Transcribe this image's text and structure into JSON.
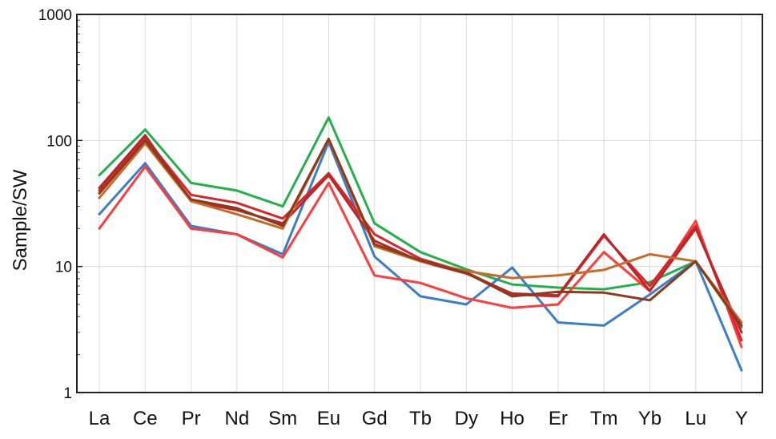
{
  "chart_data": {
    "type": "line",
    "title": "",
    "xlabel": "",
    "ylabel": "Sample/SW",
    "yscale": "log",
    "ylim": [
      1,
      1000
    ],
    "yticks": [
      "1",
      "10",
      "100",
      "1000"
    ],
    "grid": true,
    "categories": [
      "La",
      "Ce",
      "Pr",
      "Nd",
      "Sm",
      "Eu",
      "Gd",
      "Tb",
      "Dy",
      "Ho",
      "Er",
      "Tm",
      "Yb",
      "Lu",
      "Y"
    ],
    "series": [
      {
        "color": "#22b04b",
        "values": [
          53,
          122,
          46,
          40,
          30,
          152,
          22,
          13,
          9.5,
          7.2,
          6.8,
          6.6,
          7.5,
          11,
          3.3
        ]
      },
      {
        "color": "#3a7dc9",
        "values": [
          26,
          66,
          21,
          18,
          12.5,
          97,
          12,
          5.8,
          5.0,
          9.8,
          3.6,
          3.4,
          6.0,
          11,
          1.5
        ]
      },
      {
        "color": "#ff3b3b",
        "values": [
          20,
          62,
          20,
          18,
          11.8,
          46,
          8.5,
          7.4,
          5.6,
          4.7,
          5.0,
          13,
          6.4,
          23,
          2.3
        ]
      },
      {
        "color": "#d9262a",
        "values": [
          40,
          105,
          37,
          32,
          24,
          55,
          18,
          11.5,
          9.0,
          6.0,
          5.8,
          17.5,
          7.0,
          21,
          2.6
        ]
      },
      {
        "color": "#b8282a",
        "values": [
          42,
          110,
          33,
          28,
          22,
          53,
          16,
          11,
          8.8,
          6.1,
          5.9,
          18,
          6.4,
          20,
          3.0
        ]
      },
      {
        "color": "#c86a2a",
        "values": [
          35,
          95,
          33,
          26,
          20,
          102,
          14.5,
          11,
          9.2,
          8.1,
          8.5,
          9.4,
          12.5,
          11,
          3.6
        ]
      },
      {
        "color": "#8b3a1c",
        "values": [
          38,
          100,
          34,
          29,
          21,
          103,
          15,
          11.2,
          8.9,
          5.8,
          6.3,
          6.2,
          5.4,
          11,
          3.4
        ]
      }
    ]
  }
}
